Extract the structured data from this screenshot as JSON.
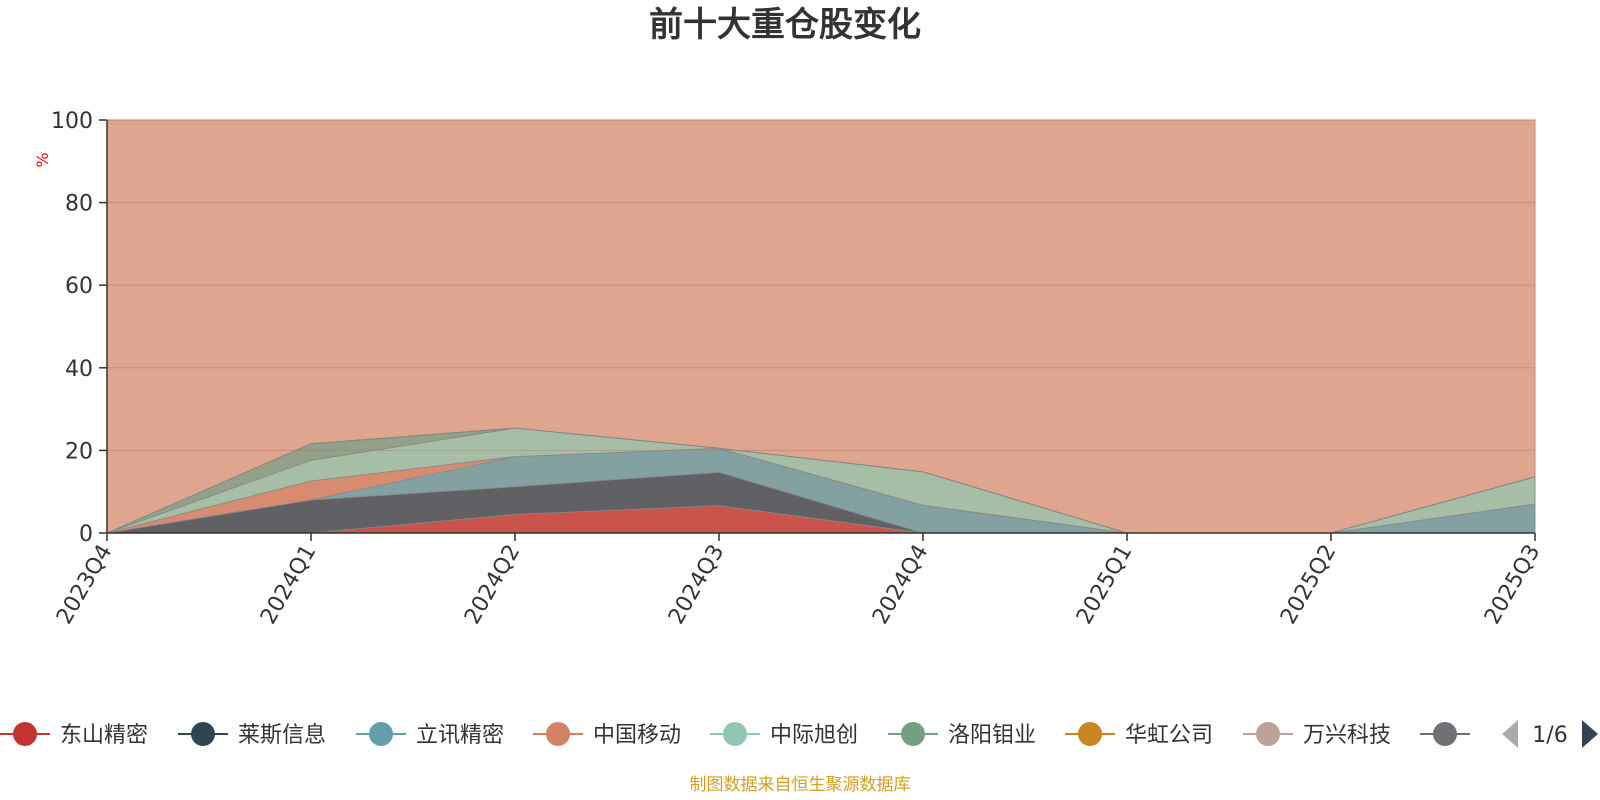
{
  "chart_data": {
    "type": "area",
    "stacked": true,
    "title": "前十大重仓股变化",
    "ylabel": "%",
    "ylim": [
      0,
      100
    ],
    "yticks": [
      0,
      20,
      40,
      60,
      80,
      100
    ],
    "categories": [
      "2023Q4",
      "2024Q1",
      "2024Q2",
      "2024Q3",
      "2024Q4",
      "2025Q1",
      "2025Q2",
      "2025Q3"
    ],
    "series": [
      {
        "name": "东山精密",
        "color": "#c23531",
        "values": [
          0,
          0,
          4.5,
          6.6,
          0,
          0,
          0,
          0
        ]
      },
      {
        "name": "莱斯信息",
        "color": "#2f4554",
        "values": [
          0,
          8,
          6.7,
          8.1,
          0,
          0,
          0,
          0
        ]
      },
      {
        "name": "立讯精密",
        "color": "#61a0a8",
        "values": [
          0,
          0,
          7.3,
          5.8,
          6.7,
          0,
          0,
          7
        ]
      },
      {
        "name": "中国移动",
        "color": "#d48265",
        "values": [
          0,
          4.6,
          0,
          0,
          0,
          0,
          0,
          0
        ]
      },
      {
        "name": "中际旭创",
        "color": "#91c7ae",
        "values": [
          0,
          5,
          6.9,
          0,
          8.1,
          0,
          0,
          6.6
        ]
      },
      {
        "name": "洛阳钼业",
        "color": "#749f83",
        "values": [
          0,
          4,
          0,
          0,
          0,
          0,
          0,
          0
        ]
      },
      {
        "name": "华虹公司",
        "color": "#ca8622",
        "values": [
          0,
          0,
          0,
          0,
          0,
          0,
          0,
          0
        ]
      },
      {
        "name": "万兴科技",
        "color": "#bda29a",
        "values": [
          0,
          0,
          0,
          0,
          0,
          0,
          0,
          0
        ]
      },
      {
        "name": "",
        "color": "#6e7074",
        "values": [
          0,
          0,
          0,
          0,
          0,
          0,
          0,
          0
        ]
      }
    ],
    "legend": {
      "position": "bottom",
      "page": "1/6"
    },
    "footnote": "制图数据来自恒生聚源数据库"
  }
}
